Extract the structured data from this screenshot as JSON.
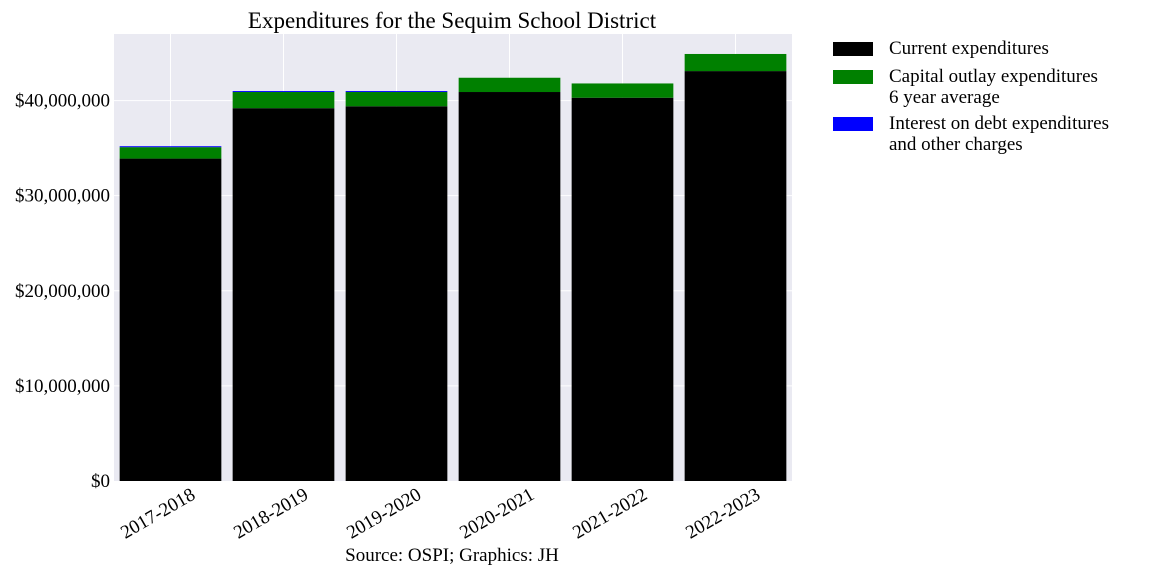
{
  "chart_data": {
    "type": "bar",
    "stacked": true,
    "title": "Expenditures for the Sequim School District",
    "caption": "Source: OSPI; Graphics: JH",
    "xlabel": "",
    "ylabel": "",
    "categories": [
      "2017-2018",
      "2018-2019",
      "2019-2020",
      "2020-2021",
      "2021-2022",
      "2022-2023"
    ],
    "ylim": [
      0,
      47000000
    ],
    "yticks": [
      0,
      10000000,
      20000000,
      30000000,
      40000000
    ],
    "ytick_labels": [
      "$0",
      "$10,000,000",
      "$20,000,000",
      "$30,000,000",
      "$40,000,000"
    ],
    "grid": true,
    "legend_position": "outside-right-top",
    "series": [
      {
        "name": "Current expenditures",
        "color": "#000000",
        "values": [
          33900000,
          39200000,
          39400000,
          40900000,
          40300000,
          43100000
        ]
      },
      {
        "name": "Capital outlay expenditures\n6 year average",
        "color": "#008000",
        "values": [
          1200000,
          1700000,
          1500000,
          1500000,
          1500000,
          1800000
        ]
      },
      {
        "name": "Interest on debt expenditures\nand other charges",
        "color": "#0000ff",
        "values": [
          100000,
          100000,
          100000,
          0,
          0,
          0
        ]
      }
    ],
    "colors": {
      "plot_background": "#eaeaf2",
      "grid": "#ffffff"
    }
  }
}
